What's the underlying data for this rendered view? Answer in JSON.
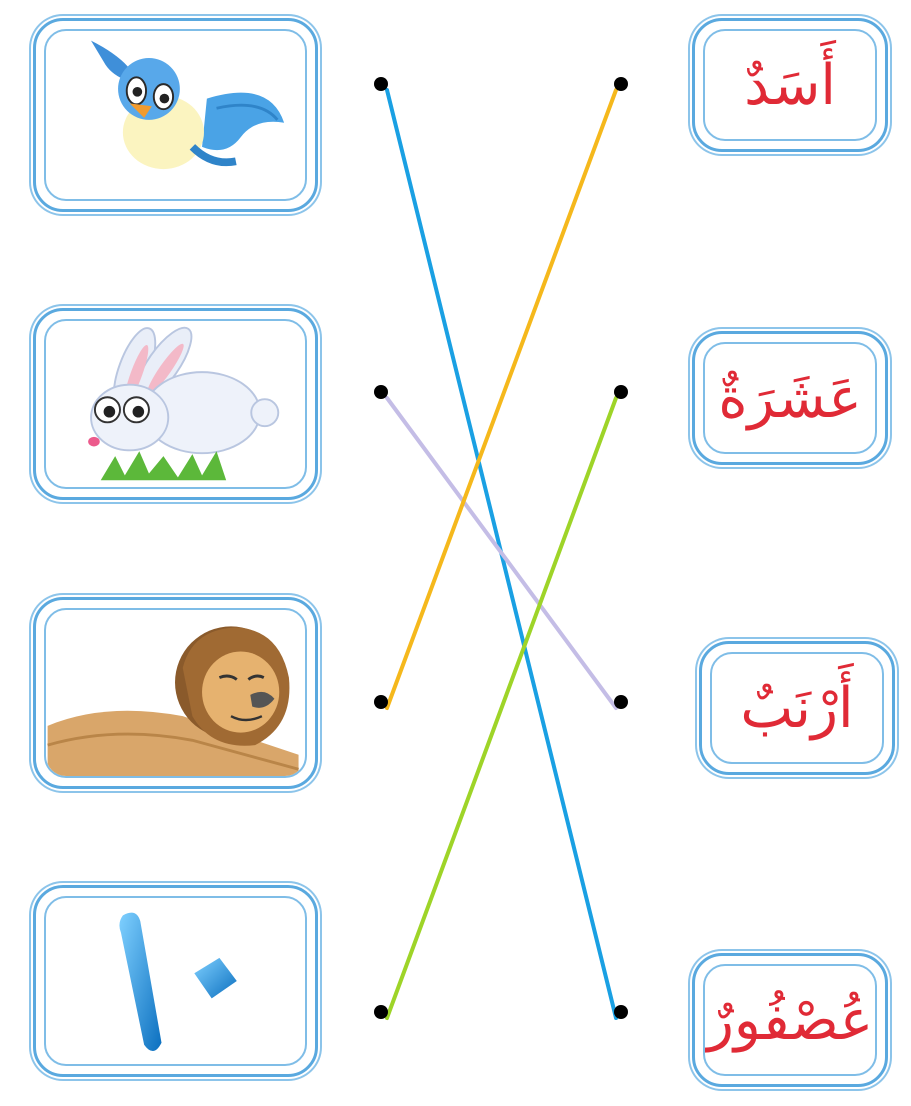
{
  "words": [
    {
      "text": "أَسَدٌ",
      "color": "#e02a36"
    },
    {
      "text": "عَشَرَةٌ",
      "color": "#e02a36"
    },
    {
      "text": "أَرْنَبٌ",
      "color": "#e02a36"
    },
    {
      "text": "عُصْفُورٌ",
      "color": "#e02a36"
    }
  ],
  "pictures": [
    {
      "subject": "bird"
    },
    {
      "subject": "rabbit"
    },
    {
      "subject": "lion"
    },
    {
      "subject": "number-ten",
      "text": "١٠"
    }
  ],
  "connections": [
    {
      "from_picture": 0,
      "to_word": 3,
      "color": "#1aa0e3"
    },
    {
      "from_picture": 1,
      "to_word": 2,
      "color": "#c4bde6"
    },
    {
      "from_picture": 2,
      "to_word": 0,
      "color": "#f5b81c"
    },
    {
      "from_picture": 3,
      "to_word": 1,
      "color": "#9ed428"
    }
  ],
  "dot_color": "#000000",
  "frame_color": "#5aa9df"
}
